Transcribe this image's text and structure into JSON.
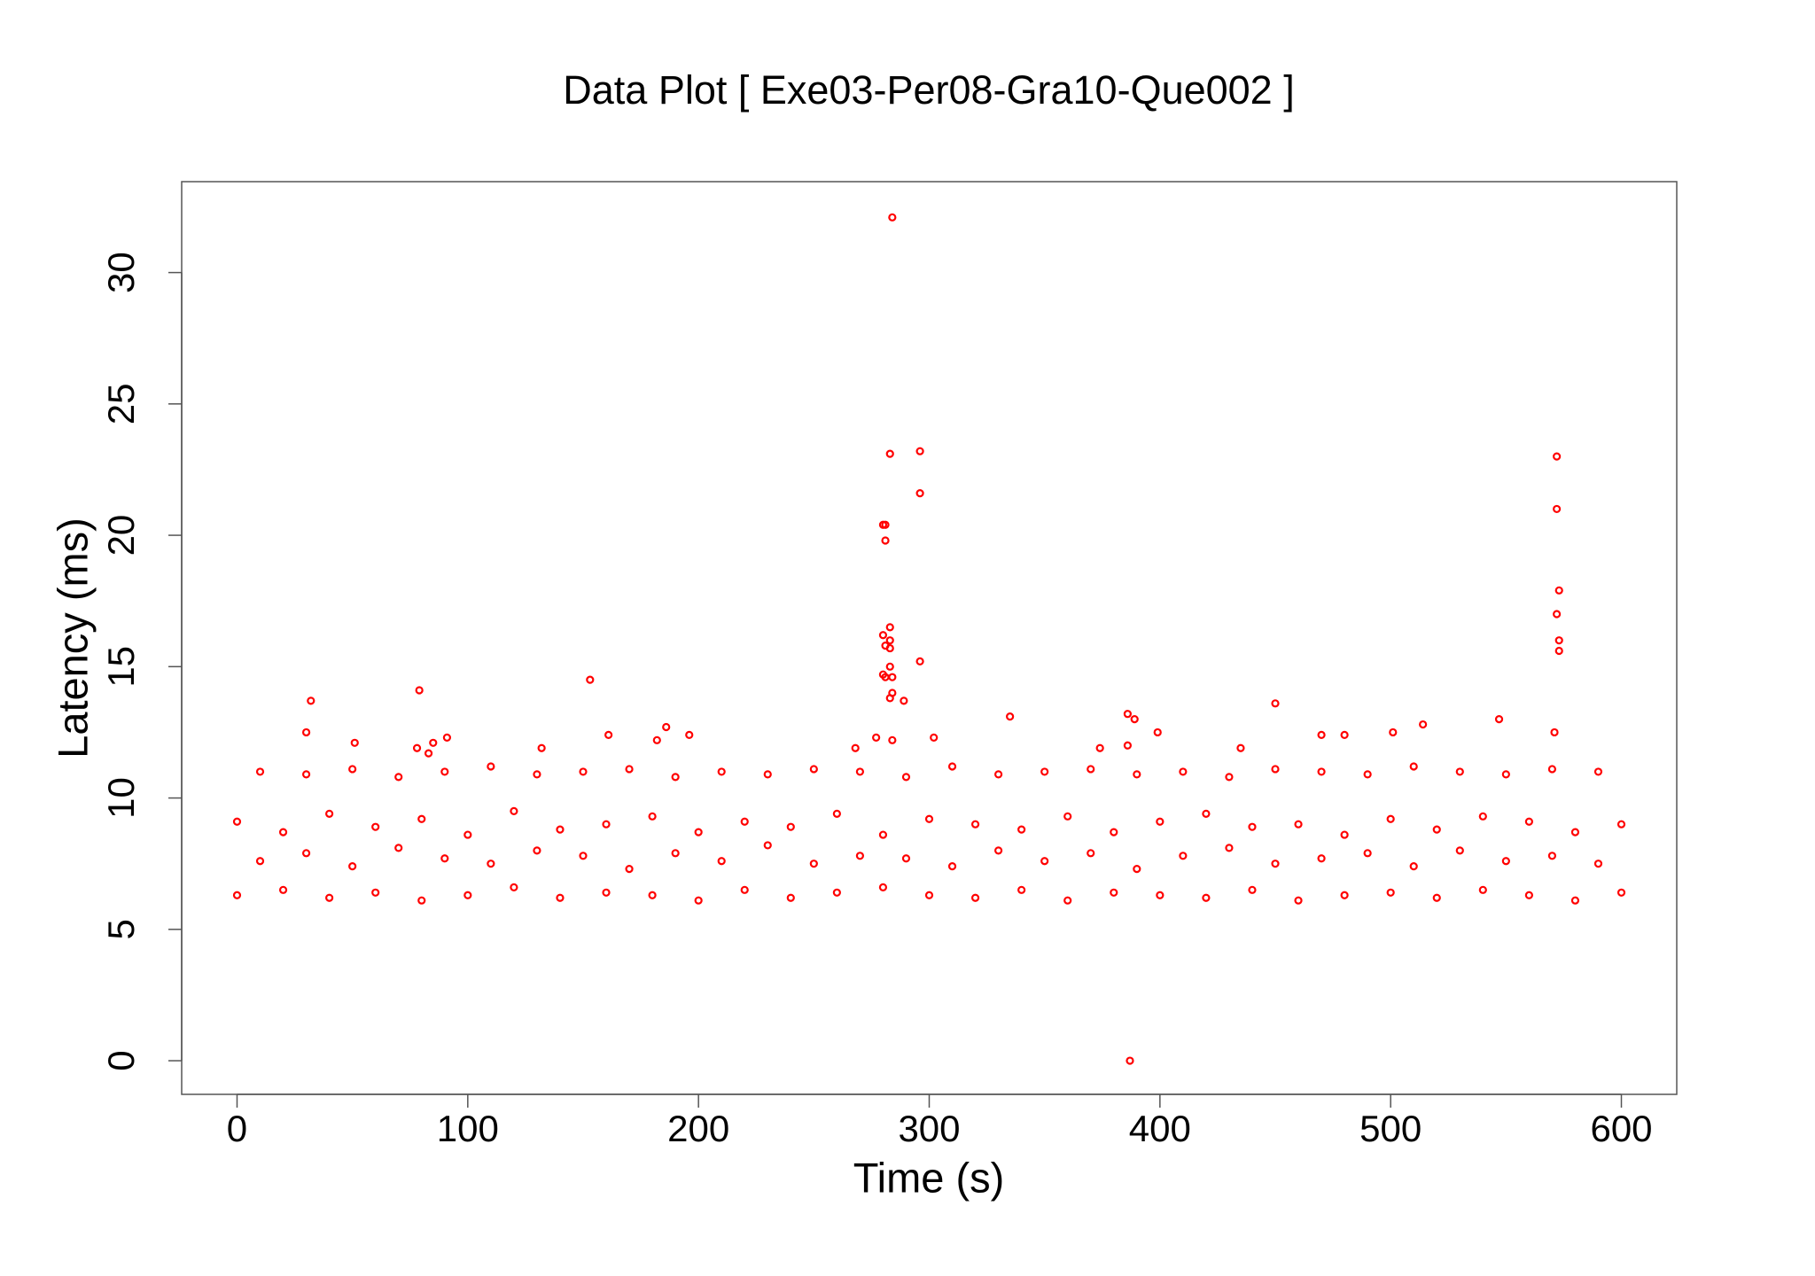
{
  "chart_data": {
    "type": "scatter",
    "title": "Data Plot [ Exe03-Per08-Gra10-Que002 ]",
    "x_label": "Time (s)",
    "y_label": "Latency (ms)",
    "color": "#ff0000",
    "xlim": [
      -24,
      624
    ],
    "ylim": [
      -1.28,
      33.46
    ],
    "xticks": [
      0,
      100,
      200,
      300,
      400,
      500,
      600
    ],
    "yticks": [
      0,
      5,
      10,
      15,
      20,
      25,
      30
    ],
    "x": [
      0,
      20,
      40,
      60,
      80,
      100,
      120,
      140,
      160,
      180,
      200,
      220,
      240,
      260,
      280,
      300,
      320,
      340,
      360,
      380,
      400,
      420,
      440,
      460,
      480,
      500,
      520,
      540,
      560,
      580,
      600,
      10,
      30,
      50,
      70,
      90,
      110,
      130,
      150,
      170,
      190,
      210,
      230,
      250,
      270,
      290,
      310,
      330,
      350,
      370,
      390,
      410,
      430,
      450,
      470,
      490,
      510,
      530,
      550,
      570,
      590,
      0,
      20,
      40,
      60,
      80,
      100,
      120,
      140,
      160,
      180,
      200,
      220,
      240,
      260,
      280,
      300,
      320,
      340,
      360,
      380,
      400,
      420,
      440,
      460,
      480,
      500,
      520,
      540,
      560,
      580,
      600,
      10,
      30,
      50,
      70,
      90,
      110,
      130,
      150,
      170,
      190,
      210,
      230,
      250,
      270,
      290,
      310,
      330,
      350,
      370,
      390,
      410,
      430,
      450,
      470,
      490,
      510,
      530,
      550,
      570,
      590,
      284,
      283,
      296,
      280,
      281,
      281,
      296,
      572,
      572,
      573,
      572,
      573,
      573,
      283,
      280,
      283,
      283,
      281,
      283,
      296,
      280,
      281,
      284,
      284,
      283,
      289,
      32,
      79,
      153,
      30,
      51,
      78,
      85,
      91,
      83,
      161,
      186,
      182,
      196,
      132,
      268,
      277,
      284,
      302,
      335,
      386,
      389,
      399,
      386,
      374,
      435,
      450,
      470,
      480,
      501,
      514,
      547,
      571,
      387
    ],
    "values": [
      6.3,
      6.5,
      6.2,
      6.4,
      6.1,
      6.3,
      6.6,
      6.2,
      6.4,
      6.3,
      6.1,
      6.5,
      6.2,
      6.4,
      6.6,
      6.3,
      6.2,
      6.5,
      6.1,
      6.4,
      6.3,
      6.2,
      6.5,
      6.1,
      6.3,
      6.4,
      6.2,
      6.5,
      6.3,
      6.1,
      6.4,
      11.0,
      10.9,
      11.1,
      10.8,
      11.0,
      11.2,
      10.9,
      11.0,
      11.1,
      10.8,
      11.0,
      10.9,
      11.1,
      11.0,
      10.8,
      11.2,
      10.9,
      11.0,
      11.1,
      10.9,
      11.0,
      10.8,
      11.1,
      11.0,
      10.9,
      11.2,
      11.0,
      10.9,
      11.1,
      11.0,
      9.1,
      8.7,
      9.4,
      8.9,
      9.2,
      8.6,
      9.5,
      8.8,
      9.0,
      9.3,
      8.7,
      9.1,
      8.9,
      9.4,
      8.6,
      9.2,
      9.0,
      8.8,
      9.3,
      8.7,
      9.1,
      9.4,
      8.9,
      9.0,
      8.6,
      9.2,
      8.8,
      9.3,
      9.1,
      8.7,
      9.0,
      7.6,
      7.9,
      7.4,
      8.1,
      7.7,
      7.5,
      8.0,
      7.8,
      7.3,
      7.9,
      7.6,
      8.2,
      7.5,
      7.8,
      7.7,
      7.4,
      8.0,
      7.6,
      7.9,
      7.3,
      7.8,
      8.1,
      7.5,
      7.7,
      7.9,
      7.4,
      8.0,
      7.6,
      7.8,
      7.5,
      32.1,
      23.1,
      23.2,
      20.4,
      20.4,
      19.8,
      21.6,
      23,
      21,
      17.9,
      17,
      16,
      15.6,
      16.5,
      16.2,
      16,
      15.7,
      15.8,
      15,
      15.2,
      14.7,
      14.6,
      14.6,
      14,
      13.8,
      13.7,
      13.7,
      14.1,
      14.5,
      12.5,
      12.1,
      11.9,
      12.1,
      12.3,
      11.7,
      12.4,
      12.7,
      12.2,
      12.4,
      11.9,
      11.9,
      12.3,
      12.2,
      12.3,
      13.1,
      13.2,
      13,
      12.5,
      12,
      11.9,
      11.9,
      13.6,
      12.4,
      12.4,
      12.5,
      12.8,
      13,
      12.5,
      0
    ]
  }
}
